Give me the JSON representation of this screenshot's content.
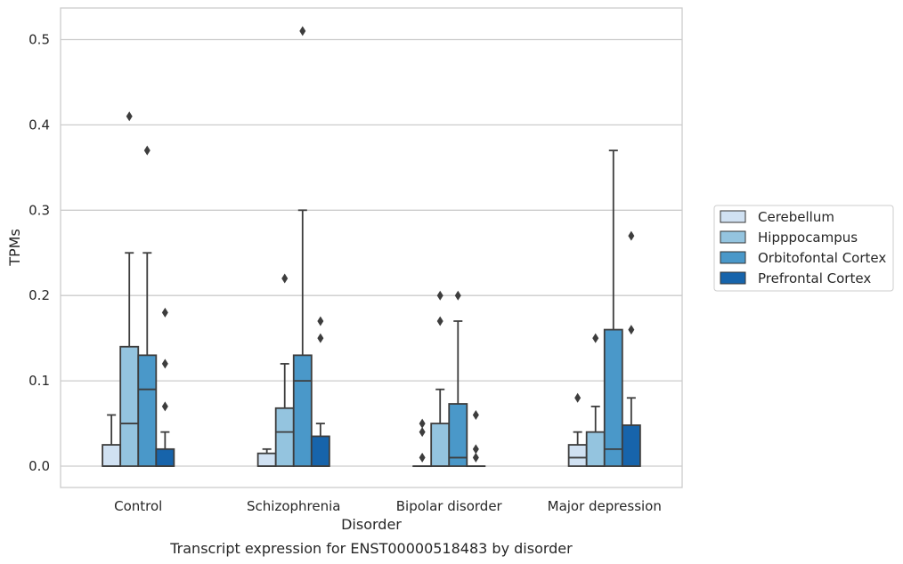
{
  "chart_data": {
    "type": "box",
    "caption": "Transcript expression for ENST00000518483 by disorder",
    "xlabel": "Disorder",
    "ylabel": "TPMs",
    "ylim": [
      -0.025,
      0.537
    ],
    "yticks": [
      0.0,
      0.1,
      0.2,
      0.3,
      0.4,
      0.5
    ],
    "ytick_labels": [
      "0.0",
      "0.1",
      "0.2",
      "0.3",
      "0.4",
      "0.5"
    ],
    "grid": "horizontal",
    "legend_position": "right",
    "categories": [
      "Control",
      "Schizophrenia",
      "Bipolar disorder",
      "Major depression"
    ],
    "series": [
      {
        "name": "Cerebellum",
        "color": "#d0e1f2",
        "boxes": [
          {
            "whislo": 0.0,
            "q1": 0.0,
            "med": 0.0,
            "q3": 0.025,
            "whishi": 0.06,
            "fliers": []
          },
          {
            "whislo": 0.0,
            "q1": 0.0,
            "med": 0.0,
            "q3": 0.015,
            "whishi": 0.02,
            "fliers": []
          },
          {
            "whislo": 0.0,
            "q1": 0.0,
            "med": 0.0,
            "q3": 0.0,
            "whishi": 0.0,
            "fliers": [
              0.01,
              0.04,
              0.05
            ]
          },
          {
            "whislo": 0.0,
            "q1": 0.0,
            "med": 0.01,
            "q3": 0.025,
            "whishi": 0.04,
            "fliers": [
              0.08
            ]
          }
        ]
      },
      {
        "name": "Hipppocampus",
        "color": "#94c4df",
        "boxes": [
          {
            "whislo": 0.0,
            "q1": 0.0,
            "med": 0.05,
            "q3": 0.14,
            "whishi": 0.25,
            "fliers": [
              0.41
            ]
          },
          {
            "whislo": 0.0,
            "q1": 0.0,
            "med": 0.04,
            "q3": 0.068,
            "whishi": 0.12,
            "fliers": [
              0.22
            ]
          },
          {
            "whislo": 0.0,
            "q1": 0.0,
            "med": 0.0,
            "q3": 0.05,
            "whishi": 0.09,
            "fliers": [
              0.17,
              0.2
            ]
          },
          {
            "whislo": 0.0,
            "q1": 0.0,
            "med": 0.0,
            "q3": 0.04,
            "whishi": 0.07,
            "fliers": [
              0.15
            ]
          }
        ]
      },
      {
        "name": "Orbitofontal Cortex",
        "color": "#4a98c9",
        "boxes": [
          {
            "whislo": 0.0,
            "q1": 0.0,
            "med": 0.09,
            "q3": 0.13,
            "whishi": 0.25,
            "fliers": [
              0.37
            ]
          },
          {
            "whislo": 0.0,
            "q1": 0.0,
            "med": 0.1,
            "q3": 0.13,
            "whishi": 0.3,
            "fliers": [
              0.51
            ]
          },
          {
            "whislo": 0.0,
            "q1": 0.0,
            "med": 0.01,
            "q3": 0.073,
            "whishi": 0.17,
            "fliers": [
              0.2
            ]
          },
          {
            "whislo": 0.0,
            "q1": 0.0,
            "med": 0.02,
            "q3": 0.16,
            "whishi": 0.37,
            "fliers": []
          }
        ]
      },
      {
        "name": "Prefrontal Cortex",
        "color": "#1764ab",
        "boxes": [
          {
            "whislo": 0.0,
            "q1": 0.0,
            "med": 0.0,
            "q3": 0.02,
            "whishi": 0.04,
            "fliers": [
              0.07,
              0.12,
              0.18
            ]
          },
          {
            "whislo": 0.0,
            "q1": 0.0,
            "med": 0.0,
            "q3": 0.035,
            "whishi": 0.05,
            "fliers": [
              0.15,
              0.17
            ]
          },
          {
            "whislo": 0.0,
            "q1": 0.0,
            "med": 0.0,
            "q3": 0.0,
            "whishi": 0.0,
            "fliers": [
              0.01,
              0.02,
              0.06
            ]
          },
          {
            "whislo": 0.0,
            "q1": 0.0,
            "med": 0.0,
            "q3": 0.048,
            "whishi": 0.08,
            "fliers": [
              0.16,
              0.27
            ]
          }
        ]
      }
    ],
    "style_colors": {
      "line": "#3d3d3d",
      "grid": "#cccccc",
      "frame": "#cccccc",
      "text": "#262626"
    }
  }
}
